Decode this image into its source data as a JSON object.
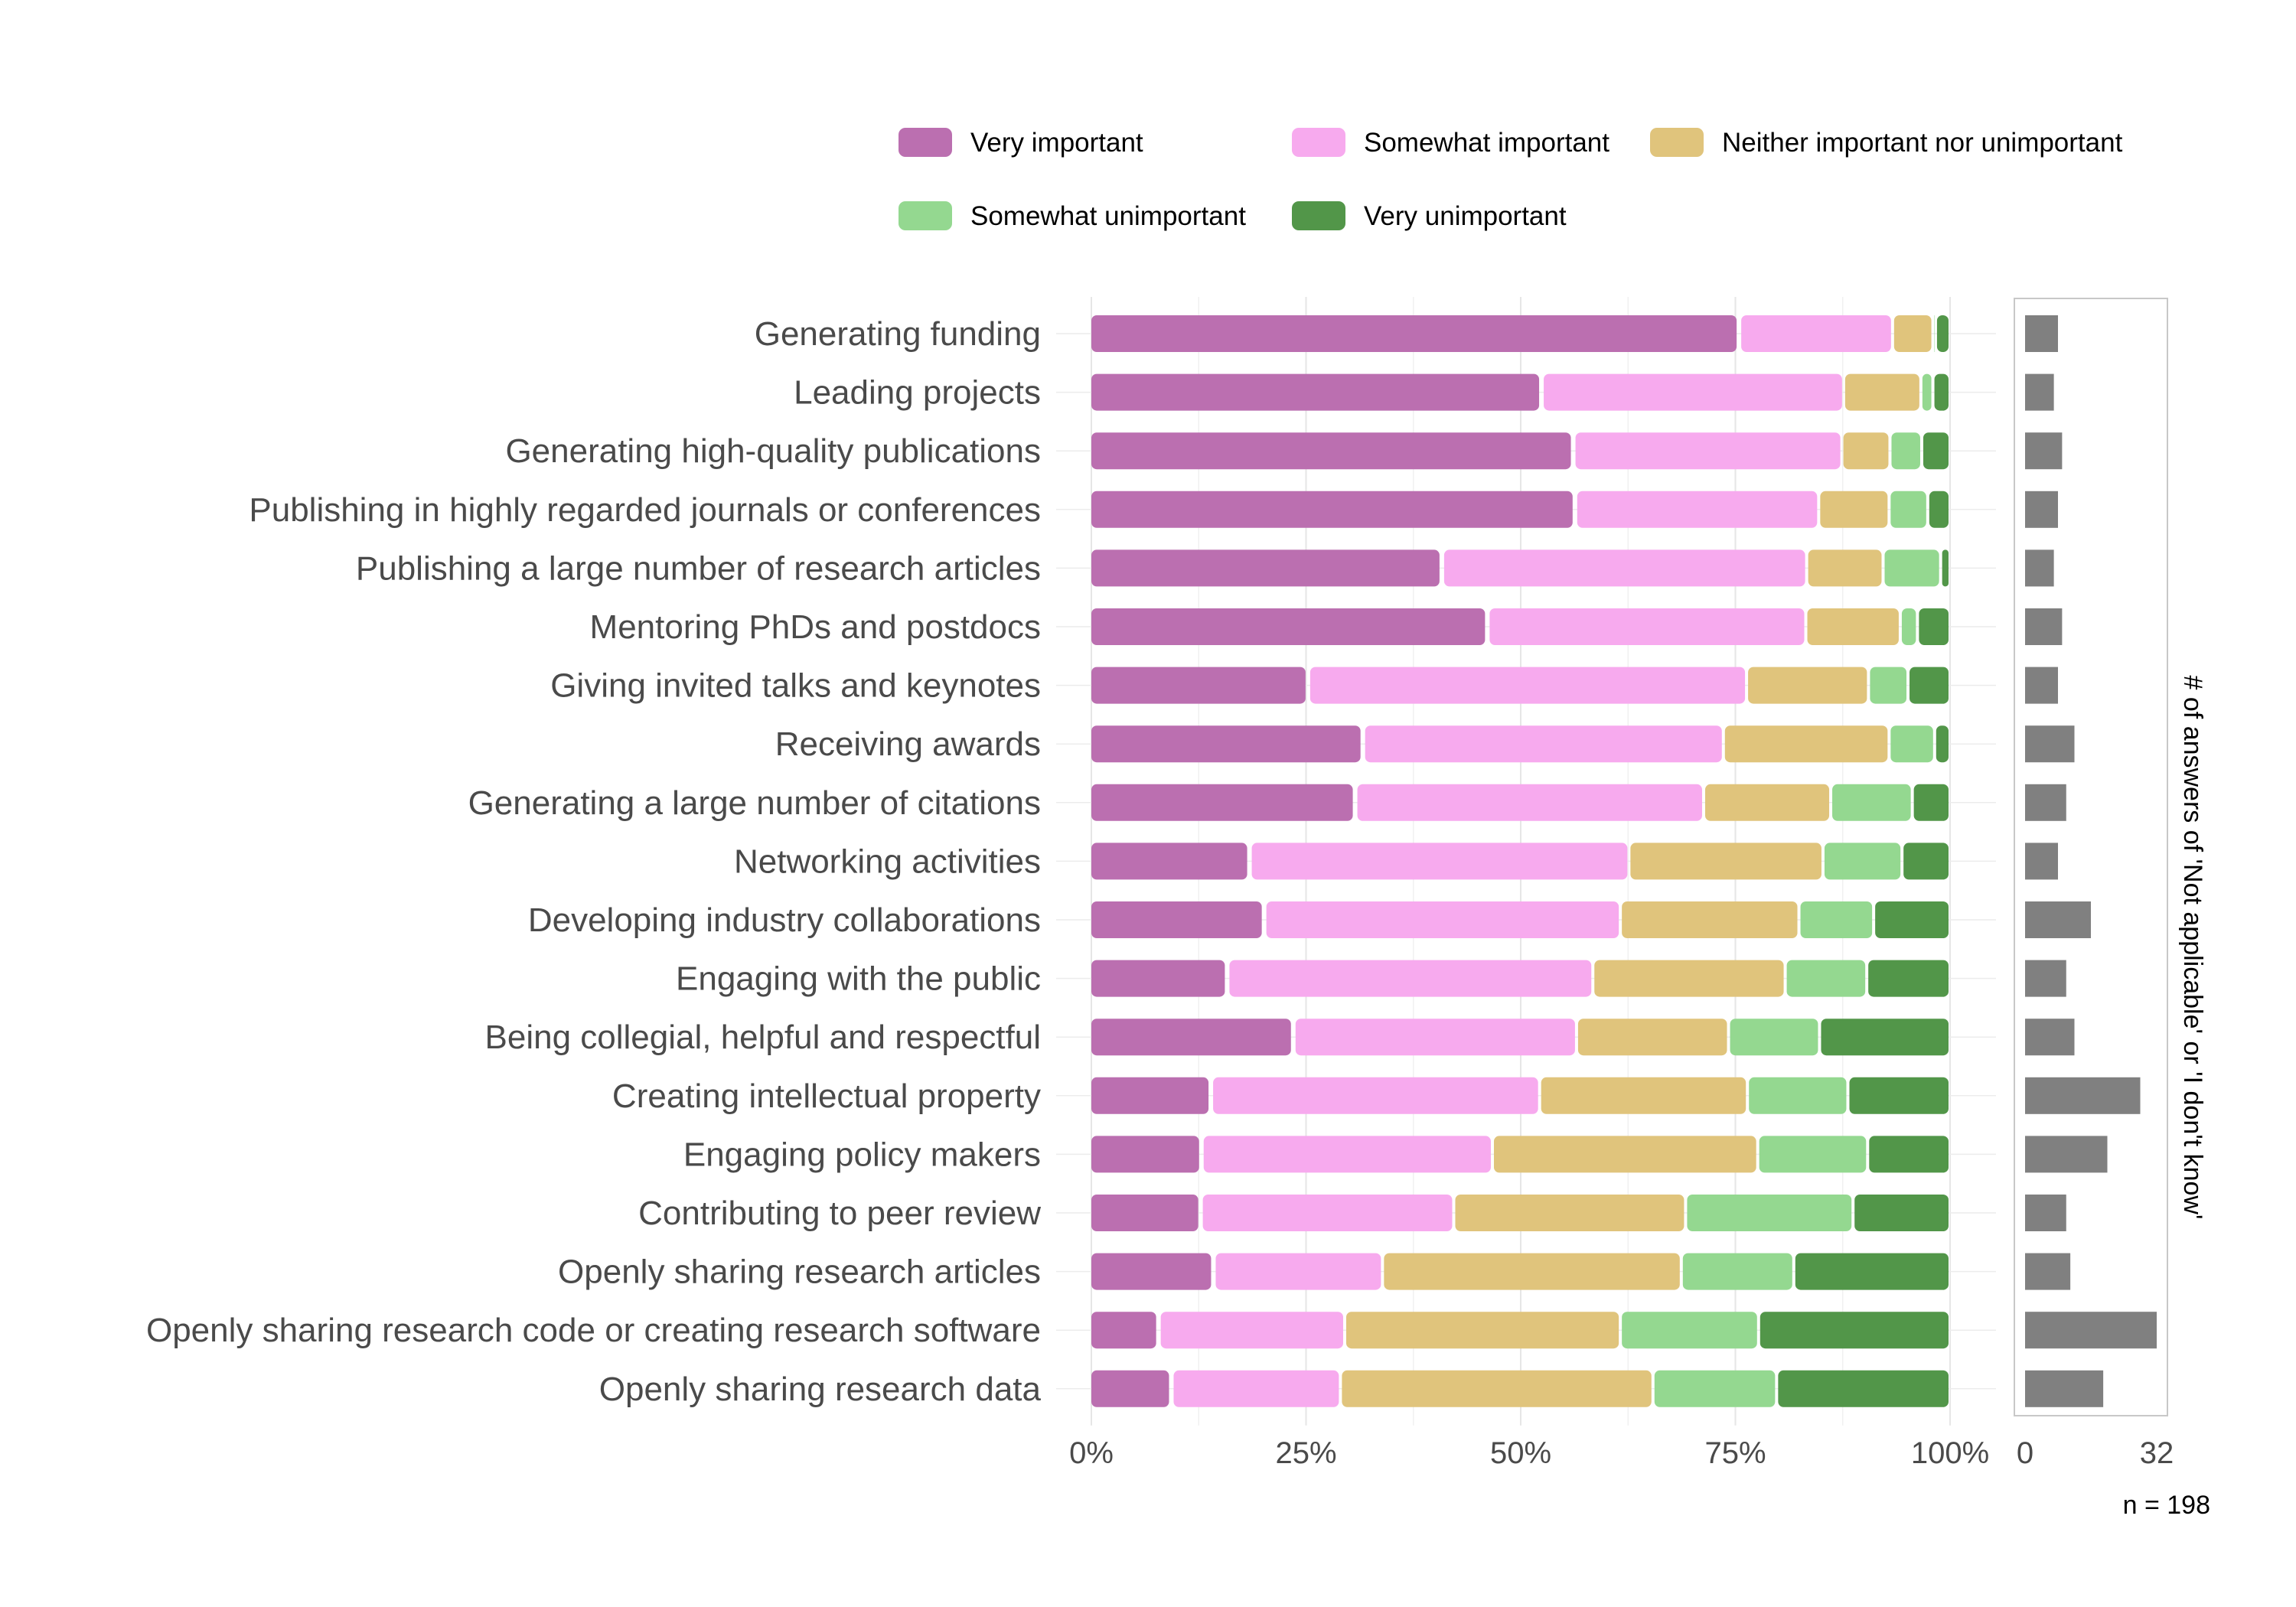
{
  "chart_data": {
    "type": "bar",
    "stacked": true,
    "orientation": "horizontal",
    "percent_scale": true,
    "categories": [
      "Generating funding",
      "Leading projects",
      "Generating high-quality publications",
      "Publishing in highly regarded journals or conferences",
      "Publishing a large number of research articles",
      "Mentoring PhDs and postdocs",
      "Giving invited talks and keynotes",
      "Receiving awards",
      "Generating a large number of citations",
      "Networking activities",
      "Developing industry collaborations",
      "Engaging with the public",
      "Being collegial, helpful and respectful",
      "Creating intellectual property",
      "Engaging policy makers",
      "Contributing to peer review",
      "Openly sharing research articles",
      "Openly sharing research code or creating research software",
      "Openly sharing research data"
    ],
    "series": [
      {
        "name": "Very important",
        "color": "#bb6fb0",
        "values": [
          75.5,
          52.5,
          56.2,
          56.4,
          40.9,
          46.2,
          25.3,
          31.7,
          30.8,
          18.5,
          20.2,
          15.9,
          23.6,
          14.0,
          12.9,
          12.8,
          14.3,
          7.9,
          9.4
        ]
      },
      {
        "name": "Somewhat important",
        "color": "#f7aaee",
        "values": [
          17.8,
          35.1,
          31.2,
          28.3,
          42.4,
          37.0,
          51.0,
          41.9,
          40.5,
          44.1,
          41.4,
          42.5,
          32.9,
          38.2,
          33.8,
          29.4,
          19.6,
          21.6,
          19.6
        ]
      },
      {
        "name": "Neither important nor unimportant",
        "color": "#e0c47c",
        "values": [
          4.7,
          9.0,
          5.6,
          8.2,
          8.9,
          11.0,
          14.2,
          19.3,
          14.8,
          22.6,
          20.8,
          22.4,
          17.7,
          24.2,
          30.9,
          27.0,
          34.8,
          32.1,
          36.4
        ]
      },
      {
        "name": "Somewhat unimportant",
        "color": "#94d890",
        "values": [
          0.3,
          1.4,
          3.7,
          4.5,
          6.7,
          2.0,
          4.6,
          5.3,
          9.5,
          9.2,
          8.7,
          9.5,
          10.6,
          11.7,
          12.8,
          19.5,
          13.1,
          16.1,
          14.4
        ]
      },
      {
        "name": "Very unimportant",
        "color": "#529649",
        "values": [
          1.7,
          2.0,
          3.3,
          2.6,
          1.1,
          3.8,
          4.9,
          1.8,
          4.4,
          5.6,
          8.9,
          9.7,
          15.2,
          11.9,
          9.6,
          11.3,
          18.2,
          22.3,
          20.2
        ]
      }
    ],
    "xticks": [
      "0%",
      "25%",
      "50%",
      "75%",
      "100%"
    ],
    "xlim": [
      0,
      100
    ],
    "legend_position": "top",
    "side_chart": {
      "type": "bar",
      "color": "#808080",
      "values": [
        8,
        7,
        9,
        8,
        7,
        9,
        8,
        12,
        10,
        8,
        16,
        10,
        12,
        28,
        20,
        10,
        11,
        32,
        19
      ],
      "xlim": [
        0,
        32
      ],
      "xticks": [
        "0",
        "32"
      ],
      "ylabel": "# of answers of 'Not applicable' or 'I don't know'"
    },
    "note": "n = 198"
  }
}
